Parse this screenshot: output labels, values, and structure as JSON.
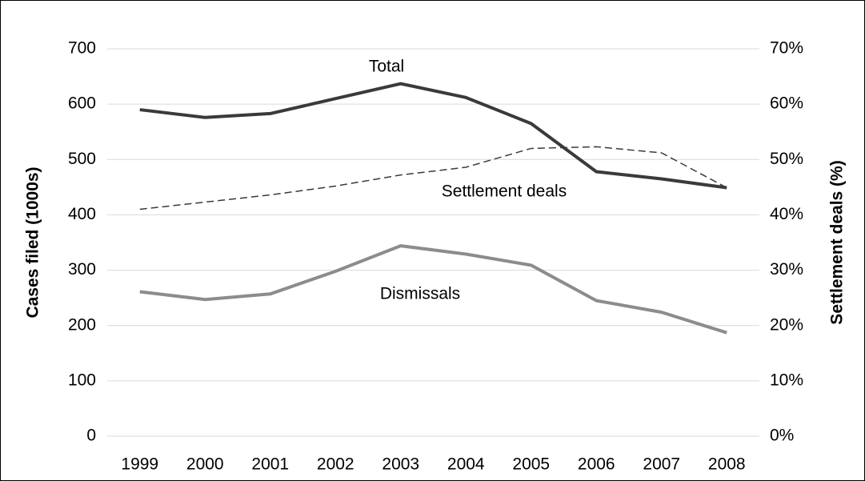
{
  "chart_data": {
    "type": "line",
    "categories": [
      "1999",
      "2000",
      "2001",
      "2002",
      "2003",
      "2004",
      "2005",
      "2006",
      "2007",
      "2008"
    ],
    "y_label": "Cases filed (1000s)",
    "y2_label": "Settlement deals (%)",
    "ylim": [
      0,
      700
    ],
    "yticks": [
      0,
      100,
      200,
      300,
      400,
      500,
      600,
      700
    ],
    "y2lim": [
      0,
      70
    ],
    "y2ticks": [
      {
        "value": 0,
        "label": "0%"
      },
      {
        "value": 10,
        "label": "10%"
      },
      {
        "value": 20,
        "label": "20%"
      },
      {
        "value": 30,
        "label": "30%"
      },
      {
        "value": 40,
        "label": "40%"
      },
      {
        "value": 50,
        "label": "50%"
      },
      {
        "value": 60,
        "label": "60%"
      },
      {
        "value": 70,
        "label": "70%"
      }
    ],
    "grid": true,
    "series": [
      {
        "name": "Total",
        "color": "#3a3a3a",
        "line_style": "solid",
        "values": [
          590,
          576,
          583,
          610,
          637,
          612,
          565,
          478,
          465,
          449
        ]
      },
      {
        "name": "Settlement deals",
        "color": "#3a3a3a",
        "line_style": "dashed",
        "axis": "y2",
        "values": [
          41,
          42.3,
          43.6,
          45.2,
          47.2,
          48.6,
          52,
          52.3,
          51.2,
          44.9
        ]
      },
      {
        "name": "Dismissals",
        "color": "#8c8c8c",
        "line_style": "solid",
        "values": [
          261,
          247,
          257,
          298,
          344,
          329,
          309,
          245,
          224,
          187
        ]
      }
    ]
  }
}
